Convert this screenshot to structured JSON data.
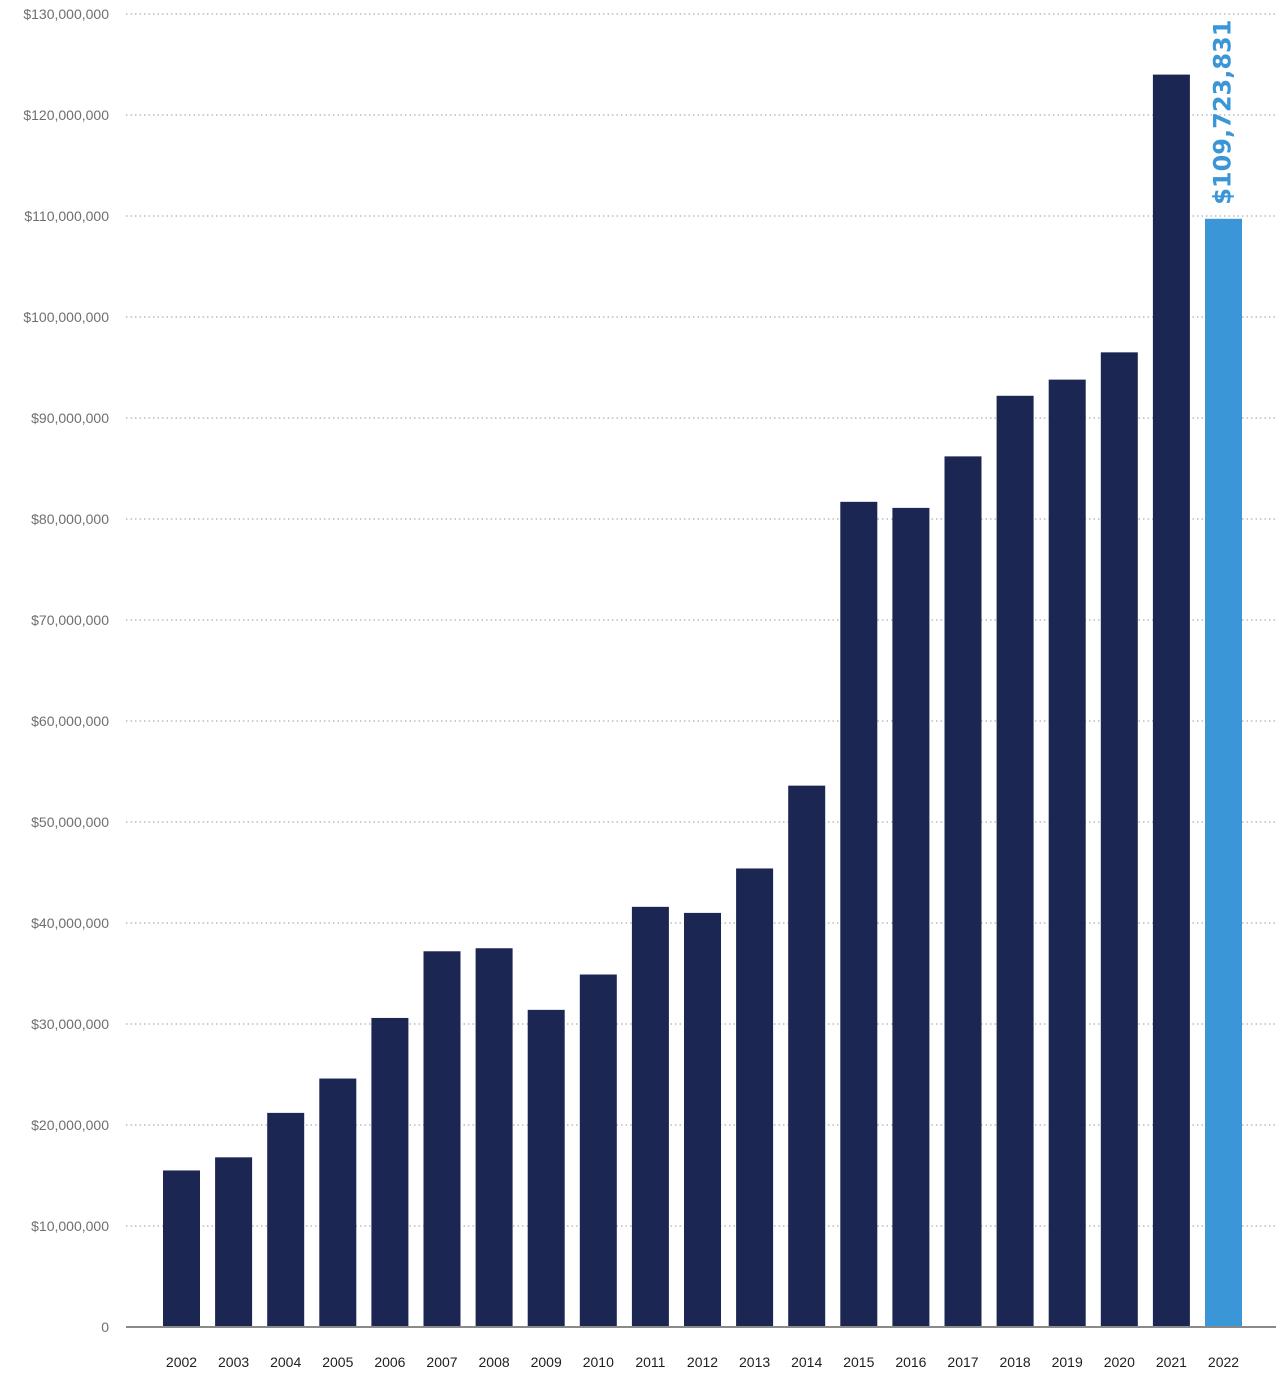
{
  "chart_data": {
    "type": "bar",
    "title": "",
    "xlabel": "",
    "ylabel": "",
    "ylim": [
      0,
      130000000
    ],
    "yticks": [
      0,
      10000000,
      20000000,
      30000000,
      40000000,
      50000000,
      60000000,
      70000000,
      80000000,
      90000000,
      100000000,
      110000000,
      120000000,
      130000000
    ],
    "ytick_labels": [
      "0",
      "$10,000,000",
      "$20,000,000",
      "$30,000,000",
      "$40,000,000",
      "$50,000,000",
      "$60,000,000",
      "$70,000,000",
      "$80,000,000",
      "$90,000,000",
      "$100,000,000",
      "$110,000,000",
      "$120,000,000",
      "$130,000,000"
    ],
    "grid": true,
    "categories": [
      "2002",
      "2003",
      "2004",
      "2005",
      "2006",
      "2007",
      "2008",
      "2009",
      "2010",
      "2011",
      "2012",
      "2013",
      "2014",
      "2015",
      "2016",
      "2017",
      "2018",
      "2019",
      "2020",
      "2021",
      "2022"
    ],
    "values": [
      15500000,
      16800000,
      21200000,
      24600000,
      30600000,
      37200000,
      37500000,
      31400000,
      34900000,
      41600000,
      41000000,
      45400000,
      53600000,
      81700000,
      81100000,
      86200000,
      92200000,
      93800000,
      96500000,
      124000000,
      109723831
    ],
    "colors": {
      "bar": "#1b2652",
      "highlight": "#3a96d6"
    },
    "highlight_index": 20,
    "data_labels": [
      {
        "index": 20,
        "text": "$109,723,831",
        "orientation": "vertical"
      }
    ]
  }
}
